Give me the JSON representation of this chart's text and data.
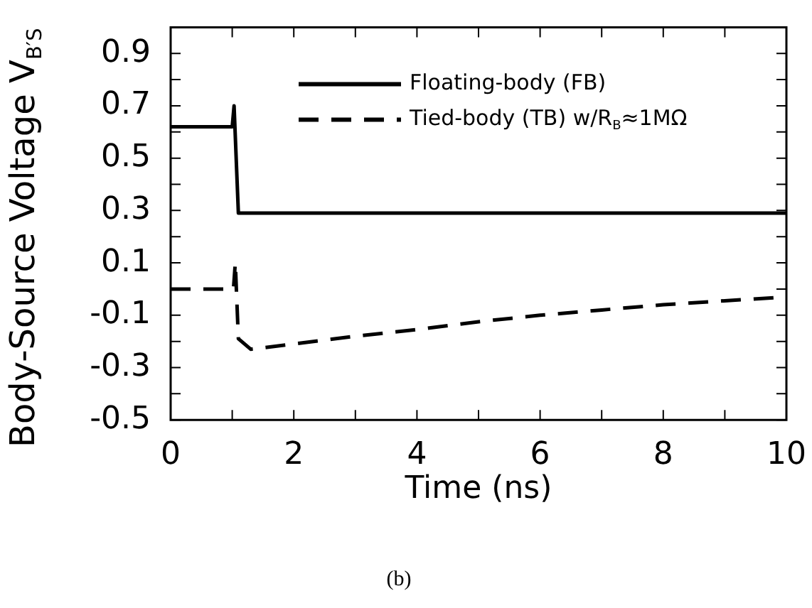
{
  "chart_data": {
    "type": "line",
    "xlabel": "Time (ns)",
    "ylabel": "Body-Source Voltage V$_{B′S}$",
    "legend": "top right",
    "grid": false,
    "marker": "none",
    "xlim": [
      0,
      10
    ],
    "xticks": [
      0,
      {
        "value": 1,
        "label": null
      },
      2,
      {
        "value": 3,
        "label": null
      },
      4,
      {
        "value": 5,
        "label": null
      },
      6,
      {
        "value": 7,
        "label": null
      },
      8,
      {
        "value": 9,
        "label": null
      },
      10
    ],
    "ylim": [
      -0.5,
      1.0
    ],
    "yticks": [
      -0.5,
      {
        "value": -0.4,
        "label": null
      },
      -0.3,
      {
        "value": -0.2,
        "label": null
      },
      -0.1,
      {
        "value": 0,
        "label": null
      },
      0.1,
      {
        "value": 0.2,
        "label": null
      },
      0.3,
      {
        "value": 0.4,
        "label": null
      },
      0.5,
      {
        "value": 0.6,
        "label": null
      },
      0.7,
      {
        "value": 0.8,
        "label": null
      },
      0.9
    ],
    "series": [
      {
        "name": "Floating-body (FB)",
        "color": "#000000",
        "line_style": "solid",
        "x": [
          0,
          1.0,
          1.03,
          1.1,
          10
        ],
        "values": [
          0.62,
          0.62,
          0.7,
          0.29,
          0.29
        ]
      },
      {
        "name": "Tied-body (TB) w/R$_{B}$≈1MΩ",
        "color": "#000000",
        "line_style": "dashed",
        "x": [
          0,
          1.02,
          1.05,
          1.1,
          1.3,
          2,
          3,
          4,
          5,
          6,
          7,
          8,
          9,
          10
        ],
        "values": [
          0,
          0,
          0.1,
          -0.19,
          -0.23,
          -0.21,
          -0.18,
          -0.155,
          -0.125,
          -0.1,
          -0.08,
          -0.06,
          -0.045,
          -0.03
        ]
      }
    ],
    "annotations": [
      "(b)"
    ]
  }
}
